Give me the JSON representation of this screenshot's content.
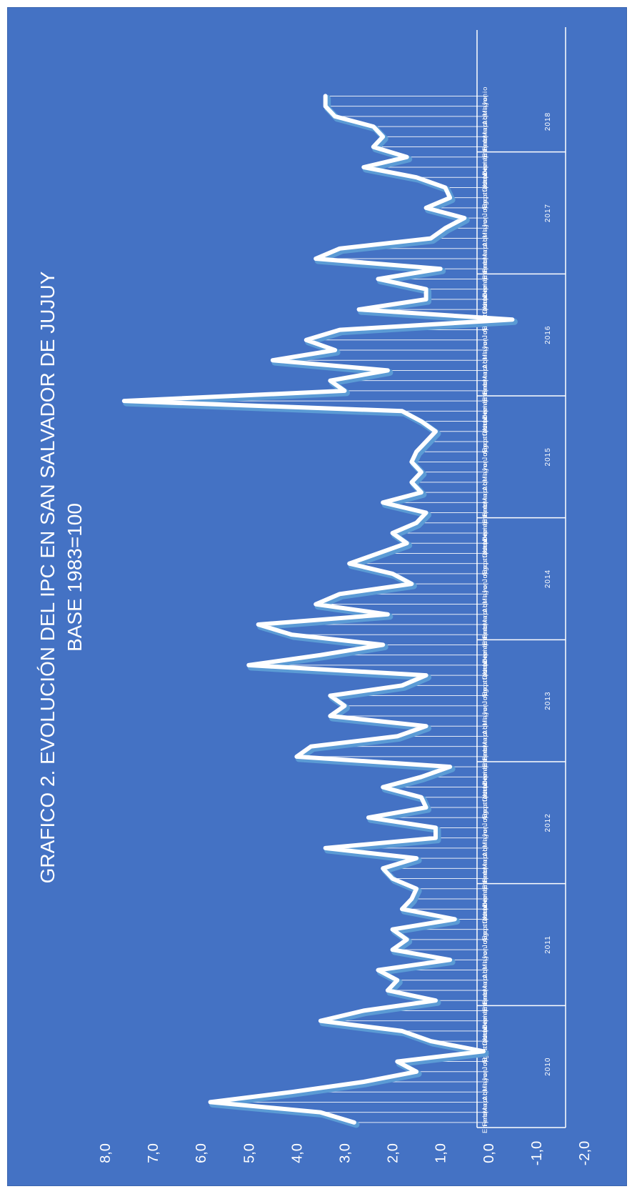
{
  "colors": {
    "background": "#4472c4",
    "line": "#ffffff",
    "shadow": "#5b9bd5",
    "text": "#ffffff"
  },
  "chart_data": {
    "type": "line",
    "title": "GRAFICO 2. EVOLUCIÓN DEL IPC EN SAN SALVADOR DE JUJUY",
    "subtitle": "BASE 1983=100",
    "orientation": "rotated 90° clockwise (value axis horizontal, time axis vertical, labels read bottom-to-top)",
    "ylim": [
      -2.0,
      8.0
    ],
    "yticks": [
      "-2,0",
      "-1,0",
      "0,0",
      "1,0",
      "2,0",
      "3,0",
      "4,0",
      "5,0",
      "6,0",
      "7,0",
      "8,0"
    ],
    "grid": false,
    "month_labels": [
      "Enero",
      "Febrero",
      "Marzo",
      "Abril",
      "Mayo",
      "Junio",
      "Julio",
      "Agosto",
      "Septiembre",
      "Octubre",
      "Noviembre",
      "Diciembre"
    ],
    "years": [
      "2010",
      "2011",
      "2012",
      "2013",
      "2014",
      "2015",
      "2016",
      "2017",
      "2018"
    ],
    "last_year_months": 6,
    "series": [
      {
        "values": [
          2.8,
          3.5,
          5.8,
          4.1,
          2.6,
          1.5,
          1.9,
          0.1,
          1.2,
          1.8,
          3.5,
          2.6,
          1.1,
          2.1,
          1.9,
          2.3,
          0.8,
          2.0,
          1.7,
          2.0,
          0.7,
          1.8,
          1.6,
          1.5,
          2.0,
          2.2,
          1.5,
          3.4,
          1.1,
          1.1,
          2.5,
          1.3,
          1.4,
          2.2,
          1.4,
          0.8,
          4.0,
          3.7,
          1.9,
          1.3,
          3.3,
          3.0,
          3.3,
          1.8,
          1.3,
          5.0,
          3.5,
          2.2,
          4.1,
          4.8,
          2.1,
          3.6,
          3.1,
          1.6,
          2.0,
          2.9,
          2.3,
          1.7,
          2.0,
          1.5,
          1.3,
          2.2,
          1.4,
          1.6,
          1.4,
          1.6,
          1.5,
          1.3,
          1.1,
          1.4,
          1.8,
          7.6,
          3.0,
          3.3,
          2.1,
          4.5,
          3.2,
          3.8,
          3.1,
          -0.5,
          2.7,
          1.3,
          1.3,
          2.3,
          1.0,
          3.6,
          3.1,
          1.2,
          0.9,
          0.5,
          1.3,
          0.8,
          0.9,
          1.5,
          2.6,
          1.7,
          2.4,
          2.2,
          2.4,
          3.2,
          3.4,
          3.4
        ]
      }
    ]
  }
}
